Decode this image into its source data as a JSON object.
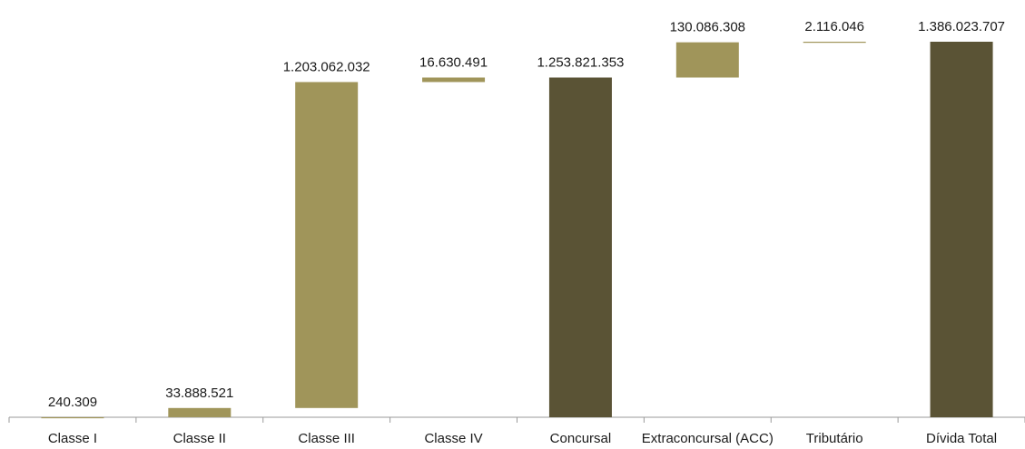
{
  "chart_data": {
    "type": "bar",
    "subtype": "waterfall",
    "title": "",
    "xlabel": "",
    "ylabel": "",
    "categories": [
      "Classe I",
      "Classe II",
      "Classe III",
      "Classe IV",
      "Concursal",
      "Extraconcursal (ACC)",
      "Tributário",
      "Dívida Total"
    ],
    "values": [
      240309,
      33888521,
      1203062032,
      16630491,
      1253821353,
      130086308,
      2116046,
      1386023707
    ],
    "value_labels": [
      "240.309",
      "33.888.521",
      "1.203.062.032",
      "16.630.491",
      "1.253.821.353",
      "130.086.308",
      "2.116.046",
      "1.386.023.707"
    ],
    "bar_kind": [
      "increment",
      "increment",
      "increment",
      "increment",
      "total",
      "increment",
      "increment",
      "total"
    ],
    "ylim": [
      0,
      1386023707
    ],
    "grid": false,
    "legend": "none",
    "colors": {
      "increment": "#a0955a",
      "total": "#5a5335",
      "axis": "#9a9a9a"
    }
  }
}
